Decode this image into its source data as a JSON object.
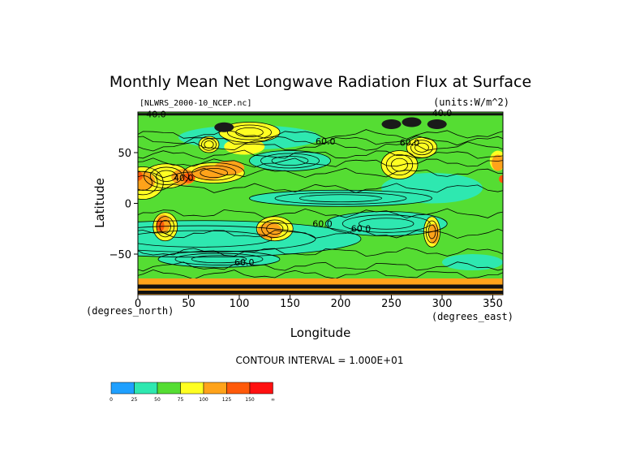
{
  "chart_data": {
    "type": "heatmap",
    "title": "Monthly Mean Net Longwave Radiation Flux at Surface",
    "file_label": "[NLWRS_2000-10_NCEP.nc]",
    "units_label": "(units:W/m^2)",
    "xlabel": "Longitude",
    "ylabel": "Latitude",
    "x_unit_label": "(degrees_east)",
    "y_unit_label": "(degrees_north)",
    "xlim": [
      0,
      360
    ],
    "ylim": [
      -90,
      90
    ],
    "x_ticks": [
      "0",
      "50",
      "100",
      "150",
      "200",
      "250",
      "300",
      "350"
    ],
    "y_ticks": [
      "50",
      "0",
      "−50"
    ],
    "contour_interval_text": "CONTOUR INTERVAL = 1.000E+01",
    "contour_labels": [
      "40.0",
      "40.0",
      "40.0",
      "60.0",
      "60.0",
      "60.0",
      "60.0",
      "60.0"
    ],
    "colorbar": {
      "colors": [
        "#1fa0ff",
        "#2ee8b0",
        "#55dd33",
        "#ffff22",
        "#ffa31a",
        "#ff5a0a",
        "#ff1010"
      ],
      "labels": [
        "0",
        "25",
        "50",
        "75",
        "100",
        "125",
        "150",
        "∞"
      ]
    },
    "field_colors": {
      "green": "#55dd33",
      "cyan": "#2ee8b0",
      "yellow": "#ffff22",
      "orange": "#ffa31a",
      "red_orange": "#ff5a0a",
      "contour": "#000000"
    }
  }
}
